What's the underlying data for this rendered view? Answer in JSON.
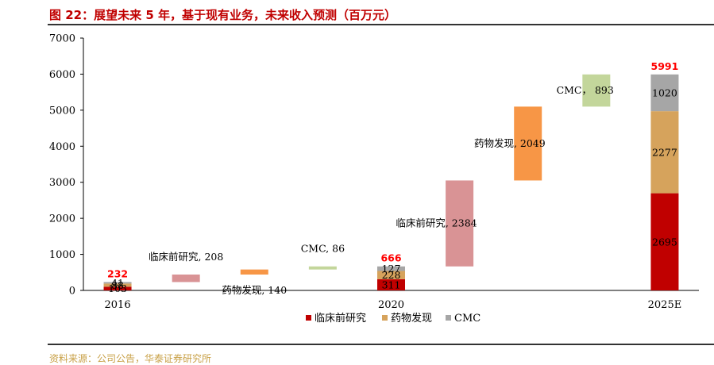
{
  "header": {
    "title": "图 22：展望未来 5 年，基于现有业务，未来收入预测（百万元）",
    "source": "资料来源：公司公告，华泰证券研究所"
  },
  "colors": {
    "clinical": "#c00000",
    "drug": "#d6a35c",
    "cmc": "#a6a6a6",
    "wf_clinical": "#d99395",
    "wf_drug": "#f79646",
    "wf_cmc": "#c3d69b",
    "total": "#ff0000"
  },
  "chart_data": {
    "type": "bar",
    "subtype": "stacked-waterfall",
    "ylim": [
      0,
      7000
    ],
    "yticks": [
      0,
      1000,
      2000,
      3000,
      4000,
      5000,
      6000,
      7000
    ],
    "xticks": [
      "2016",
      "2020",
      "2025E"
    ],
    "legend": [
      "临床前研究",
      "药物发现",
      "CMC"
    ],
    "legend_position": "bottom",
    "grid": false,
    "stacked_bars": [
      {
        "category": "2016",
        "clinical": 103,
        "drug": 88,
        "cmc": 41,
        "total": 232,
        "labels": [
          "103",
          "88",
          "41"
        ],
        "total_label": "232"
      },
      {
        "category": "2020",
        "clinical": 311,
        "drug": 228,
        "cmc": 127,
        "total": 666,
        "labels": [
          "311",
          "228",
          "127"
        ],
        "total_label": "666"
      },
      {
        "category": "2025E",
        "clinical": 2695,
        "drug": 2277,
        "cmc": 1020,
        "total": 5991,
        "labels": [
          "2695",
          "2277",
          "1020"
        ],
        "total_label": "5991"
      }
    ],
    "waterfall": [
      {
        "series": "clinical",
        "base": 232,
        "value": 208,
        "label": "临床前研究, 208"
      },
      {
        "series": "drug",
        "base": 440,
        "value": 140,
        "label": "药物发现, 140"
      },
      {
        "series": "cmc",
        "base": 580,
        "value": 86,
        "label": "CMC, 86"
      },
      {
        "series": "clinical",
        "base": 666,
        "value": 2384,
        "label": "临床前研究, 2384"
      },
      {
        "series": "drug",
        "base": 3050,
        "value": 2049,
        "label": "药物发现, 2049"
      },
      {
        "series": "cmc",
        "base": 5099,
        "value": 893,
        "label": "CMC， 893"
      }
    ]
  }
}
